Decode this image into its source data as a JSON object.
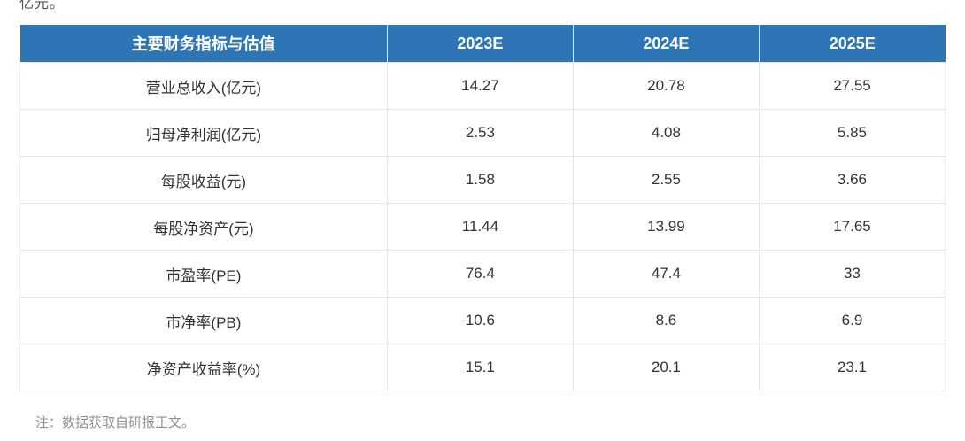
{
  "page": {
    "top_clipped_text": "亿元。",
    "note": "注：数据获取自研报正文。"
  },
  "colors": {
    "header_bg": "#2e75b6",
    "header_text": "#ffffff",
    "cell_text": "#333333",
    "row_border": "#e5e5e5",
    "note_text": "#8f8f8f"
  },
  "table": {
    "header": {
      "metric": "主要财务指标与估值",
      "y2023": "2023E",
      "y2024": "2024E",
      "y2025": "2025E"
    },
    "rows": [
      {
        "label": "营业总收入(亿元)",
        "values": [
          "14.27",
          "20.78",
          "27.55"
        ]
      },
      {
        "label": "归母净利润(亿元)",
        "values": [
          "2.53",
          "4.08",
          "5.85"
        ]
      },
      {
        "label": "每股收益(元)",
        "values": [
          "1.58",
          "2.55",
          "3.66"
        ]
      },
      {
        "label": "每股净资产(元)",
        "values": [
          "11.44",
          "13.99",
          "17.65"
        ]
      },
      {
        "label": "市盈率(PE)",
        "values": [
          "76.4",
          "47.4",
          "33"
        ]
      },
      {
        "label": "市净率(PB)",
        "values": [
          "10.6",
          "8.6",
          "6.9"
        ]
      },
      {
        "label": "净资产收益率(%)",
        "values": [
          "15.1",
          "20.1",
          "23.1"
        ]
      }
    ]
  }
}
